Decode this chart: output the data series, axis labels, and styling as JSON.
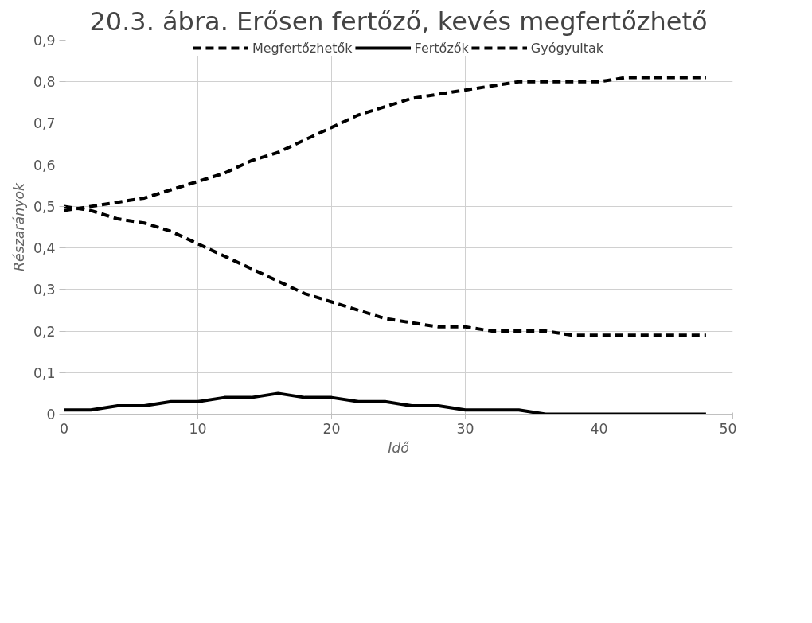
{
  "chart_data": {
    "type": "line",
    "title": "20.3. ábra. Erősen fertőző, kevés megfertőzhető",
    "xlabel": "Idő",
    "ylabel": "Részarányok",
    "x": [
      0,
      2,
      4,
      6,
      8,
      10,
      12,
      14,
      16,
      18,
      20,
      22,
      24,
      26,
      28,
      30,
      32,
      34,
      36,
      38,
      40,
      42,
      44,
      46,
      48
    ],
    "series": [
      {
        "name": "Megfertőzhetők",
        "color": "#000000",
        "line_style": "dashed",
        "values": [
          0.5,
          0.49,
          0.47,
          0.46,
          0.44,
          0.41,
          0.38,
          0.35,
          0.32,
          0.29,
          0.27,
          0.25,
          0.23,
          0.22,
          0.21,
          0.21,
          0.2,
          0.2,
          0.2,
          0.19,
          0.19,
          0.19,
          0.19,
          0.19,
          0.19
        ]
      },
      {
        "name": "Fertőzők",
        "color": "#000000",
        "line_style": "solid",
        "values": [
          0.01,
          0.01,
          0.02,
          0.02,
          0.03,
          0.03,
          0.04,
          0.04,
          0.05,
          0.04,
          0.04,
          0.03,
          0.03,
          0.02,
          0.02,
          0.01,
          0.01,
          0.01,
          0,
          0,
          0,
          0,
          0,
          0,
          0
        ]
      },
      {
        "name": "Gyógyultak",
        "color": "#000000",
        "line_style": "dashed",
        "values": [
          0.49,
          0.5,
          0.51,
          0.52,
          0.54,
          0.56,
          0.58,
          0.61,
          0.63,
          0.66,
          0.69,
          0.72,
          0.74,
          0.76,
          0.77,
          0.78,
          0.79,
          0.8,
          0.8,
          0.8,
          0.8,
          0.81,
          0.81,
          0.81,
          0.81
        ]
      }
    ],
    "xlim": [
      0,
      50
    ],
    "xticks": [
      0,
      10,
      20,
      30,
      40,
      50
    ],
    "ylim": [
      0,
      0.9
    ],
    "yticks": [
      0,
      {
        "value": 0.1,
        "label": "0,1"
      },
      {
        "value": 0.2,
        "label": "0,2"
      },
      {
        "value": 0.3,
        "label": "0,3"
      },
      {
        "value": 0.4,
        "label": "0,4"
      },
      {
        "value": 0.5,
        "label": "0,5"
      },
      {
        "value": 0.6,
        "label": "0,6"
      },
      {
        "value": 0.7,
        "label": "0,7"
      },
      {
        "value": 0.8,
        "label": "0,8"
      },
      {
        "value": 0.9,
        "label": "0,9"
      }
    ],
    "grid": true,
    "legend": "top"
  }
}
